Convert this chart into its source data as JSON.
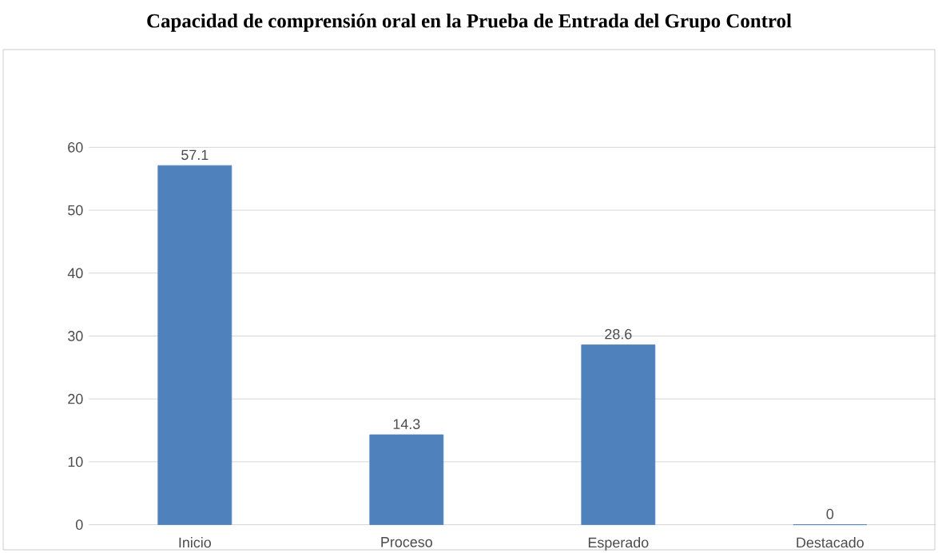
{
  "chart_data": {
    "type": "bar",
    "title": "Capacidad de comprensión oral en la Prueba de Entrada del Grupo Control",
    "categories": [
      "Inicio",
      "Proceso",
      "Esperado",
      "Destacado"
    ],
    "values": [
      57.1,
      14.3,
      28.6,
      0
    ],
    "color": "#4f81bd",
    "ylim": [
      0,
      60
    ],
    "yticks": [
      0,
      10,
      20,
      30,
      40,
      50,
      60
    ],
    "grid": "y",
    "data_labels": true
  }
}
